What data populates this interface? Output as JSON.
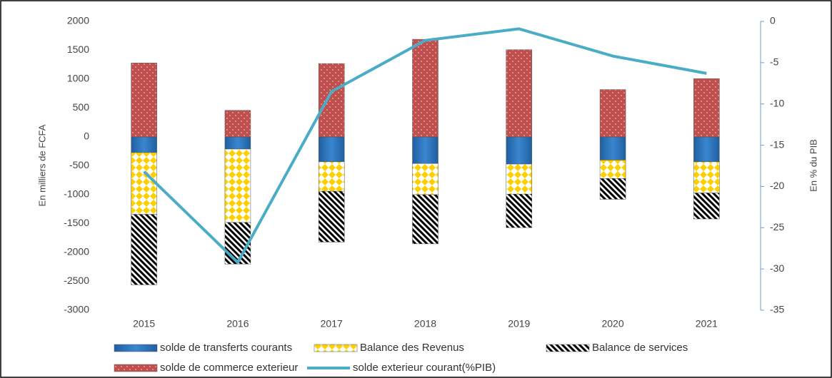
{
  "chart_data": {
    "type": "bar",
    "stacked": true,
    "categories": [
      "2015",
      "2016",
      "2017",
      "2018",
      "2019",
      "2020",
      "2021"
    ],
    "y_label": "En milliers de FCFA",
    "y2_label": "En % du PIB",
    "ylim": [
      -3000,
      2000
    ],
    "yticks": [
      -3000,
      -2500,
      -2000,
      -1500,
      -1000,
      -500,
      0,
      500,
      1000,
      1500,
      2000
    ],
    "y2lim": [
      -35,
      0
    ],
    "y2ticks": [
      -35,
      -30,
      -25,
      -20,
      -15,
      -10,
      -5,
      0
    ],
    "grid": false,
    "legend": "bottom",
    "series": [
      {
        "name": "solde de transferts courants",
        "color": "#2e75b6",
        "pattern": "solid",
        "values": [
          -270,
          -210,
          -430,
          -460,
          -470,
          -400,
          -430
        ]
      },
      {
        "name": "Balance des Revenus",
        "color": "#ffd000",
        "pattern": "diamonds",
        "values": [
          -1070,
          -1270,
          -510,
          -540,
          -520,
          -320,
          -540
        ]
      },
      {
        "name": "Balance de services",
        "color": "#000000",
        "pattern": "hatch",
        "values": [
          -1220,
          -720,
          -880,
          -850,
          -580,
          -360,
          -450
        ]
      },
      {
        "name": "solde de commerce exterieur",
        "color": "#c0504d",
        "pattern": "dots",
        "values": [
          1280,
          460,
          1270,
          1690,
          1510,
          820,
          1010
        ]
      },
      {
        "name": "solde exterieur courant(%PIB)",
        "color": "#4bacc6",
        "type": "line",
        "axis": "y2",
        "values": [
          -18.2,
          -29.2,
          -8.5,
          -2.3,
          -0.9,
          -4.2,
          -6.3
        ]
      }
    ]
  }
}
